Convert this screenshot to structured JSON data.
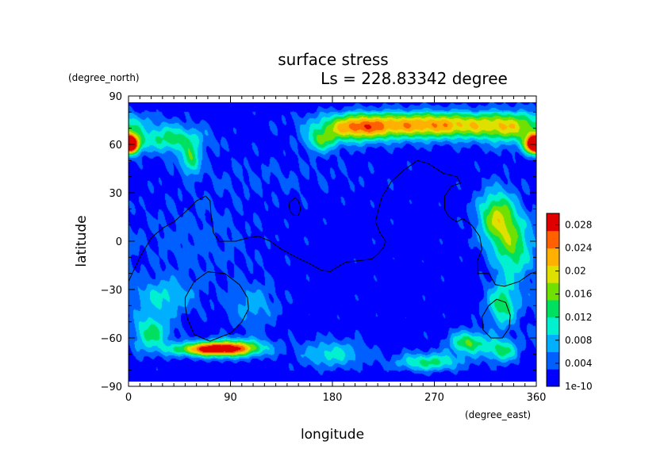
{
  "chart_data": {
    "type": "heatmap",
    "title": "surface stress",
    "subtitle": "Ls = 228.83342 degree",
    "xlabel": "longitude",
    "ylabel": "latitude",
    "x_unit": "(degree_east)",
    "y_unit": "(degree_north)",
    "xlim": [
      0,
      360
    ],
    "ylim": [
      -90,
      90
    ],
    "x_ticks": [
      0,
      90,
      180,
      270,
      360
    ],
    "y_ticks": [
      -90,
      -60,
      -30,
      0,
      30,
      60,
      90
    ],
    "colorbar": {
      "min": 0,
      "max": 0.03,
      "ticks": [
        0,
        0.004,
        0.008,
        0.012,
        0.016,
        0.02,
        0.024,
        0.028
      ],
      "tick_labels": [
        "1e-10",
        "0.004",
        "0.008",
        "0.012",
        "0.016",
        "0.02",
        "0.024",
        "0.028"
      ],
      "colors": [
        "#0000ff",
        "#0060ff",
        "#00b0ff",
        "#00f0d0",
        "#00e060",
        "#70e000",
        "#e0e000",
        "#ffb000",
        "#ff6000",
        "#e00000"
      ]
    },
    "field_blobs": [
      {
        "lon": 265,
        "lat": 72,
        "sx": 55,
        "sy": 6,
        "v": 0.0225
      },
      {
        "lon": 200,
        "lat": 70,
        "sx": 20,
        "sy": 6,
        "v": 0.014
      },
      {
        "lon": 40,
        "lat": 63,
        "sx": 20,
        "sy": 6,
        "v": 0.012
      },
      {
        "lon": 2,
        "lat": 60,
        "sx": 6,
        "sy": 4,
        "v": 0.022
      },
      {
        "lon": 358,
        "lat": 60,
        "sx": 6,
        "sy": 4,
        "v": 0.022
      },
      {
        "lon": 170,
        "lat": 62,
        "sx": 10,
        "sy": 5,
        "v": 0.011
      },
      {
        "lon": 340,
        "lat": 70,
        "sx": 20,
        "sy": 8,
        "v": 0.01
      },
      {
        "lon": 55,
        "lat": 50,
        "sx": 6,
        "sy": 6,
        "v": 0.012
      },
      {
        "lon": 325,
        "lat": 15,
        "sx": 12,
        "sy": 12,
        "v": 0.016
      },
      {
        "lon": 340,
        "lat": -5,
        "sx": 12,
        "sy": 14,
        "v": 0.012
      },
      {
        "lon": 330,
        "lat": -40,
        "sx": 10,
        "sy": 10,
        "v": 0.012
      },
      {
        "lon": 72,
        "lat": -67,
        "sx": 22,
        "sy": 3,
        "v": 0.024
      },
      {
        "lon": 95,
        "lat": -66,
        "sx": 20,
        "sy": 4,
        "v": 0.014
      },
      {
        "lon": 20,
        "lat": -57,
        "sx": 12,
        "sy": 8,
        "v": 0.012
      },
      {
        "lon": 300,
        "lat": -63,
        "sx": 12,
        "sy": 5,
        "v": 0.014
      },
      {
        "lon": 265,
        "lat": -75,
        "sx": 20,
        "sy": 4,
        "v": 0.012
      },
      {
        "lon": 330,
        "lat": -68,
        "sx": 10,
        "sy": 5,
        "v": 0.012
      },
      {
        "lon": 30,
        "lat": -35,
        "sx": 20,
        "sy": 8,
        "v": 0.008
      },
      {
        "lon": 110,
        "lat": -40,
        "sx": 15,
        "sy": 10,
        "v": 0.006
      },
      {
        "lon": 180,
        "lat": -70,
        "sx": 20,
        "sy": 6,
        "v": 0.009
      },
      {
        "lon": 60,
        "lat": 0,
        "sx": 40,
        "sy": 20,
        "v": 0.003
      },
      {
        "lon": 130,
        "lat": 40,
        "sx": 60,
        "sy": 10,
        "v": 0.002
      }
    ],
    "base_value": 0.0012,
    "contours": [
      [
        [
          0,
          -25
        ],
        [
          10,
          -10
        ],
        [
          20,
          2
        ],
        [
          30,
          8
        ],
        [
          40,
          12
        ],
        [
          50,
          18
        ],
        [
          60,
          25
        ],
        [
          68,
          28
        ],
        [
          72,
          25
        ],
        [
          73,
          15
        ],
        [
          75,
          5
        ],
        [
          80,
          0
        ],
        [
          95,
          0
        ],
        [
          105,
          2
        ],
        [
          115,
          3
        ],
        [
          125,
          0
        ],
        [
          135,
          -5
        ],
        [
          148,
          -10
        ],
        [
          160,
          -14
        ],
        [
          170,
          -18
        ],
        [
          178,
          -19
        ],
        [
          182,
          -17
        ],
        [
          192,
          -13
        ],
        [
          205,
          -12
        ],
        [
          215,
          -11
        ],
        [
          220,
          -8
        ],
        [
          225,
          -4
        ],
        [
          227,
          0
        ],
        [
          222,
          5
        ],
        [
          218,
          12
        ],
        [
          220,
          18
        ],
        [
          224,
          28
        ],
        [
          228,
          32
        ],
        [
          232,
          37
        ],
        [
          243,
          44
        ],
        [
          255,
          50
        ],
        [
          265,
          48
        ],
        [
          278,
          42
        ],
        [
          290,
          40
        ],
        [
          293,
          36
        ],
        [
          285,
          34
        ],
        [
          279,
          28
        ],
        [
          279,
          20
        ],
        [
          282,
          16
        ],
        [
          285,
          14
        ],
        [
          290,
          12
        ],
        [
          295,
          14
        ],
        [
          303,
          10
        ],
        [
          310,
          3
        ],
        [
          312,
          -5
        ],
        [
          308,
          -12
        ],
        [
          308,
          -20
        ],
        [
          318,
          -20
        ],
        [
          324,
          -27
        ],
        [
          332,
          -28
        ],
        [
          345,
          -25
        ],
        [
          355,
          -20
        ],
        [
          360,
          -19
        ]
      ],
      [
        [
          142,
          24
        ],
        [
          147,
          27
        ],
        [
          150,
          25
        ],
        [
          152,
          20
        ],
        [
          150,
          16
        ],
        [
          146,
          16
        ],
        [
          143,
          18
        ],
        [
          142,
          21
        ],
        [
          142,
          24
        ]
      ],
      [
        [
          50,
          -35
        ],
        [
          58,
          -25
        ],
        [
          70,
          -19
        ],
        [
          85,
          -20
        ],
        [
          98,
          -27
        ],
        [
          105,
          -35
        ],
        [
          106,
          -42
        ],
        [
          100,
          -50
        ],
        [
          90,
          -57
        ],
        [
          72,
          -62
        ],
        [
          58,
          -58
        ],
        [
          52,
          -48
        ],
        [
          50,
          -40
        ],
        [
          50,
          -35
        ]
      ],
      [
        [
          318,
          -40
        ],
        [
          325,
          -36
        ],
        [
          333,
          -38
        ],
        [
          337,
          -46
        ],
        [
          336,
          -54
        ],
        [
          330,
          -60
        ],
        [
          320,
          -60
        ],
        [
          313,
          -55
        ],
        [
          312,
          -47
        ],
        [
          318,
          -40
        ]
      ]
    ]
  }
}
